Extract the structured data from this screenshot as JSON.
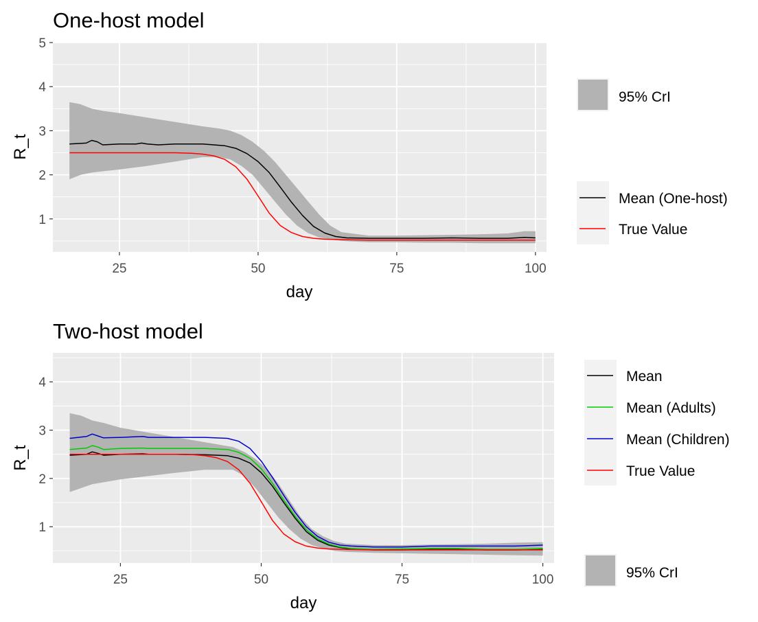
{
  "chart_data": [
    {
      "type": "line",
      "title": "One-host model",
      "xlabel": "day",
      "ylabel": "R_t",
      "xlim": [
        13,
        102
      ],
      "ylim": [
        0.25,
        5
      ],
      "x_ticks": [
        25,
        50,
        75,
        100
      ],
      "y_ticks": [
        1,
        2,
        3,
        4,
        5
      ],
      "grid": true,
      "legend_position": "right",
      "ribbon": {
        "name": "95% CrI",
        "color": "#b3b3b3",
        "points": [
          [
            16,
            1.9,
            3.65
          ],
          [
            18,
            2.0,
            3.6
          ],
          [
            20,
            2.05,
            3.5
          ],
          [
            22,
            2.08,
            3.45
          ],
          [
            25,
            2.12,
            3.4
          ],
          [
            30,
            2.2,
            3.3
          ],
          [
            35,
            2.3,
            3.2
          ],
          [
            40,
            2.4,
            3.1
          ],
          [
            43,
            2.4,
            3.05
          ],
          [
            45,
            2.35,
            3.0
          ],
          [
            47,
            2.2,
            2.9
          ],
          [
            49,
            2.0,
            2.75
          ],
          [
            51,
            1.7,
            2.55
          ],
          [
            53,
            1.4,
            2.3
          ],
          [
            55,
            1.1,
            2.0
          ],
          [
            57,
            0.85,
            1.7
          ],
          [
            59,
            0.68,
            1.4
          ],
          [
            61,
            0.58,
            1.1
          ],
          [
            63,
            0.53,
            0.85
          ],
          [
            65,
            0.5,
            0.7
          ],
          [
            70,
            0.47,
            0.62
          ],
          [
            75,
            0.47,
            0.62
          ],
          [
            80,
            0.46,
            0.63
          ],
          [
            85,
            0.46,
            0.64
          ],
          [
            90,
            0.45,
            0.65
          ],
          [
            95,
            0.45,
            0.67
          ],
          [
            98,
            0.45,
            0.72
          ],
          [
            100,
            0.45,
            0.72
          ]
        ]
      },
      "series": [
        {
          "name": "Mean (One-host)",
          "color": "#000000",
          "points": [
            [
              16,
              2.7
            ],
            [
              19,
              2.72
            ],
            [
              20,
              2.78
            ],
            [
              21,
              2.75
            ],
            [
              22,
              2.68
            ],
            [
              25,
              2.7
            ],
            [
              28,
              2.7
            ],
            [
              29,
              2.72
            ],
            [
              30,
              2.7
            ],
            [
              32,
              2.68
            ],
            [
              35,
              2.7
            ],
            [
              40,
              2.7
            ],
            [
              42,
              2.68
            ],
            [
              44,
              2.66
            ],
            [
              46,
              2.6
            ],
            [
              48,
              2.48
            ],
            [
              50,
              2.3
            ],
            [
              52,
              2.05
            ],
            [
              54,
              1.72
            ],
            [
              56,
              1.38
            ],
            [
              58,
              1.08
            ],
            [
              60,
              0.83
            ],
            [
              62,
              0.68
            ],
            [
              64,
              0.6
            ],
            [
              66,
              0.57
            ],
            [
              70,
              0.56
            ],
            [
              75,
              0.56
            ],
            [
              80,
              0.56
            ],
            [
              85,
              0.57
            ],
            [
              90,
              0.56
            ],
            [
              95,
              0.56
            ],
            [
              98,
              0.58
            ],
            [
              100,
              0.57
            ]
          ]
        },
        {
          "name": "True Value",
          "color": "#ff0000",
          "points": [
            [
              16,
              2.5
            ],
            [
              20,
              2.5
            ],
            [
              25,
              2.5
            ],
            [
              30,
              2.5
            ],
            [
              35,
              2.5
            ],
            [
              38,
              2.49
            ],
            [
              40,
              2.47
            ],
            [
              42,
              2.43
            ],
            [
              44,
              2.35
            ],
            [
              46,
              2.18
            ],
            [
              48,
              1.9
            ],
            [
              50,
              1.52
            ],
            [
              52,
              1.13
            ],
            [
              54,
              0.85
            ],
            [
              56,
              0.69
            ],
            [
              58,
              0.6
            ],
            [
              60,
              0.56
            ],
            [
              62,
              0.54
            ],
            [
              65,
              0.53
            ],
            [
              70,
              0.52
            ],
            [
              80,
              0.52
            ],
            [
              90,
              0.52
            ],
            [
              100,
              0.52
            ]
          ]
        }
      ]
    },
    {
      "type": "line",
      "title": "Two-host model",
      "xlabel": "day",
      "ylabel": "R_t",
      "xlim": [
        13,
        102
      ],
      "ylim": [
        0.25,
        4.6
      ],
      "x_ticks": [
        25,
        50,
        75,
        100
      ],
      "y_ticks": [
        1,
        2,
        3,
        4
      ],
      "grid": true,
      "legend_position": "right",
      "ribbon": {
        "name": "95% CrI",
        "color": "#b3b3b3",
        "points": [
          [
            16,
            1.72,
            3.35
          ],
          [
            18,
            1.8,
            3.3
          ],
          [
            20,
            1.88,
            3.2
          ],
          [
            22,
            1.92,
            3.15
          ],
          [
            25,
            1.98,
            3.05
          ],
          [
            30,
            2.05,
            2.95
          ],
          [
            35,
            2.12,
            2.85
          ],
          [
            40,
            2.18,
            2.75
          ],
          [
            45,
            2.18,
            2.65
          ],
          [
            47,
            2.05,
            2.55
          ],
          [
            49,
            1.8,
            2.4
          ],
          [
            51,
            1.5,
            2.2
          ],
          [
            53,
            1.2,
            1.9
          ],
          [
            55,
            0.95,
            1.55
          ],
          [
            57,
            0.75,
            1.2
          ],
          [
            59,
            0.62,
            0.95
          ],
          [
            61,
            0.55,
            0.8
          ],
          [
            63,
            0.5,
            0.7
          ],
          [
            65,
            0.48,
            0.65
          ],
          [
            70,
            0.46,
            0.62
          ],
          [
            75,
            0.45,
            0.62
          ],
          [
            80,
            0.44,
            0.63
          ],
          [
            85,
            0.43,
            0.64
          ],
          [
            90,
            0.42,
            0.65
          ],
          [
            95,
            0.41,
            0.67
          ],
          [
            100,
            0.4,
            0.68
          ]
        ]
      },
      "series": [
        {
          "name": "Mean",
          "color": "#000000",
          "points": [
            [
              16,
              2.48
            ],
            [
              19,
              2.5
            ],
            [
              20,
              2.55
            ],
            [
              21,
              2.52
            ],
            [
              22,
              2.48
            ],
            [
              25,
              2.5
            ],
            [
              29,
              2.51
            ],
            [
              30,
              2.5
            ],
            [
              35,
              2.5
            ],
            [
              40,
              2.49
            ],
            [
              44,
              2.47
            ],
            [
              46,
              2.42
            ],
            [
              48,
              2.32
            ],
            [
              50,
              2.12
            ],
            [
              52,
              1.84
            ],
            [
              54,
              1.5
            ],
            [
              56,
              1.18
            ],
            [
              58,
              0.9
            ],
            [
              60,
              0.72
            ],
            [
              62,
              0.62
            ],
            [
              64,
              0.57
            ],
            [
              66,
              0.54
            ],
            [
              70,
              0.52
            ],
            [
              75,
              0.52
            ],
            [
              80,
              0.53
            ],
            [
              85,
              0.53
            ],
            [
              90,
              0.52
            ],
            [
              95,
              0.52
            ],
            [
              100,
              0.53
            ]
          ]
        },
        {
          "name": "Mean (Adults)",
          "color": "#00cc00",
          "points": [
            [
              16,
              2.6
            ],
            [
              19,
              2.63
            ],
            [
              20,
              2.68
            ],
            [
              21,
              2.65
            ],
            [
              22,
              2.6
            ],
            [
              25,
              2.62
            ],
            [
              29,
              2.63
            ],
            [
              30,
              2.62
            ],
            [
              35,
              2.62
            ],
            [
              40,
              2.62
            ],
            [
              44,
              2.6
            ],
            [
              46,
              2.54
            ],
            [
              48,
              2.42
            ],
            [
              50,
              2.2
            ],
            [
              52,
              1.9
            ],
            [
              54,
              1.55
            ],
            [
              56,
              1.22
            ],
            [
              58,
              0.94
            ],
            [
              60,
              0.75
            ],
            [
              62,
              0.64
            ],
            [
              64,
              0.58
            ],
            [
              66,
              0.55
            ],
            [
              70,
              0.53
            ],
            [
              75,
              0.54
            ],
            [
              80,
              0.55
            ],
            [
              85,
              0.55
            ],
            [
              90,
              0.53
            ],
            [
              95,
              0.53
            ],
            [
              100,
              0.55
            ]
          ]
        },
        {
          "name": "Mean (Children)",
          "color": "#0000cc",
          "points": [
            [
              16,
              2.83
            ],
            [
              19,
              2.87
            ],
            [
              20,
              2.92
            ],
            [
              21,
              2.88
            ],
            [
              22,
              2.84
            ],
            [
              25,
              2.85
            ],
            [
              29,
              2.87
            ],
            [
              30,
              2.85
            ],
            [
              35,
              2.85
            ],
            [
              40,
              2.85
            ],
            [
              44,
              2.83
            ],
            [
              46,
              2.77
            ],
            [
              48,
              2.62
            ],
            [
              50,
              2.36
            ],
            [
              52,
              2.02
            ],
            [
              54,
              1.65
            ],
            [
              56,
              1.3
            ],
            [
              58,
              1.0
            ],
            [
              60,
              0.8
            ],
            [
              62,
              0.68
            ],
            [
              64,
              0.62
            ],
            [
              66,
              0.6
            ],
            [
              70,
              0.58
            ],
            [
              75,
              0.58
            ],
            [
              80,
              0.6
            ],
            [
              85,
              0.6
            ],
            [
              90,
              0.6
            ],
            [
              95,
              0.6
            ],
            [
              100,
              0.62
            ]
          ]
        },
        {
          "name": "True Value",
          "color": "#ff0000",
          "points": [
            [
              16,
              2.5
            ],
            [
              20,
              2.5
            ],
            [
              25,
              2.5
            ],
            [
              30,
              2.5
            ],
            [
              35,
              2.5
            ],
            [
              38,
              2.49
            ],
            [
              40,
              2.47
            ],
            [
              42,
              2.43
            ],
            [
              44,
              2.35
            ],
            [
              46,
              2.18
            ],
            [
              48,
              1.9
            ],
            [
              50,
              1.52
            ],
            [
              52,
              1.13
            ],
            [
              54,
              0.85
            ],
            [
              56,
              0.69
            ],
            [
              58,
              0.6
            ],
            [
              60,
              0.56
            ],
            [
              62,
              0.54
            ],
            [
              65,
              0.53
            ],
            [
              70,
              0.52
            ],
            [
              80,
              0.52
            ],
            [
              90,
              0.52
            ],
            [
              100,
              0.52
            ]
          ]
        }
      ]
    }
  ]
}
